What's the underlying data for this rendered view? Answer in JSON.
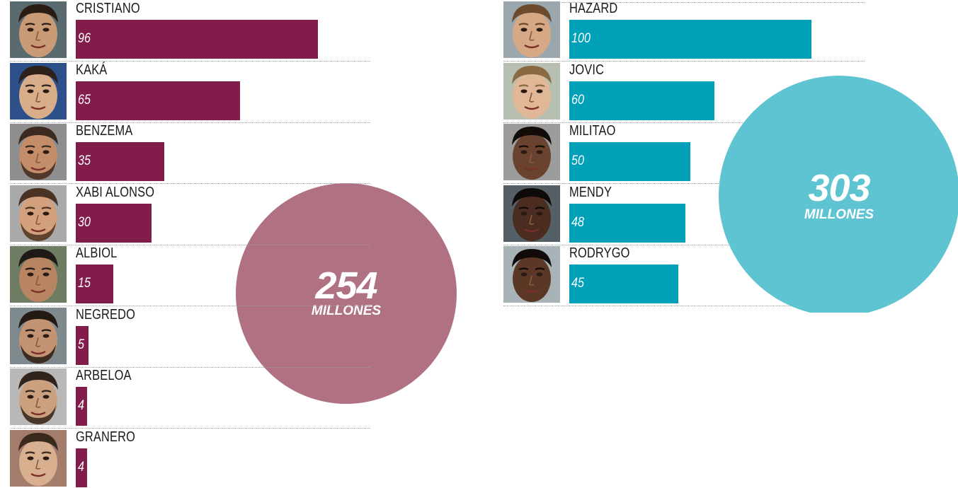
{
  "chart_data": [
    {
      "type": "bar",
      "orientation": "horizontal",
      "categories": [
        "CRISTIANO",
        "KAKÁ",
        "BENZEMA",
        "XABI ALONSO",
        "ALBIOL",
        "NEGREDO",
        "ARBELOA",
        "GRANERO"
      ],
      "values": [
        96,
        65,
        35,
        30,
        15,
        5,
        4,
        4
      ],
      "value_labels": [
        "96",
        "65",
        "35",
        "30",
        "15",
        "5",
        "4",
        "4"
      ],
      "total": {
        "amount": "254",
        "unit": "MILLONES"
      },
      "colors": {
        "bar": "#821d4b",
        "circle": "#b07283"
      }
    },
    {
      "type": "bar",
      "orientation": "horizontal",
      "categories": [
        "HAZARD",
        "JOVIC",
        "MILITAO",
        "MENDY",
        "RODRYGO"
      ],
      "values": [
        100,
        60,
        50,
        48,
        45
      ],
      "value_labels": [
        "100",
        "60",
        "50",
        "48",
        "45"
      ],
      "total": {
        "amount": "303",
        "unit": "MILLONES"
      },
      "colors": {
        "bar": "#00a0b9",
        "circle": "#5ec4d2"
      }
    }
  ]
}
